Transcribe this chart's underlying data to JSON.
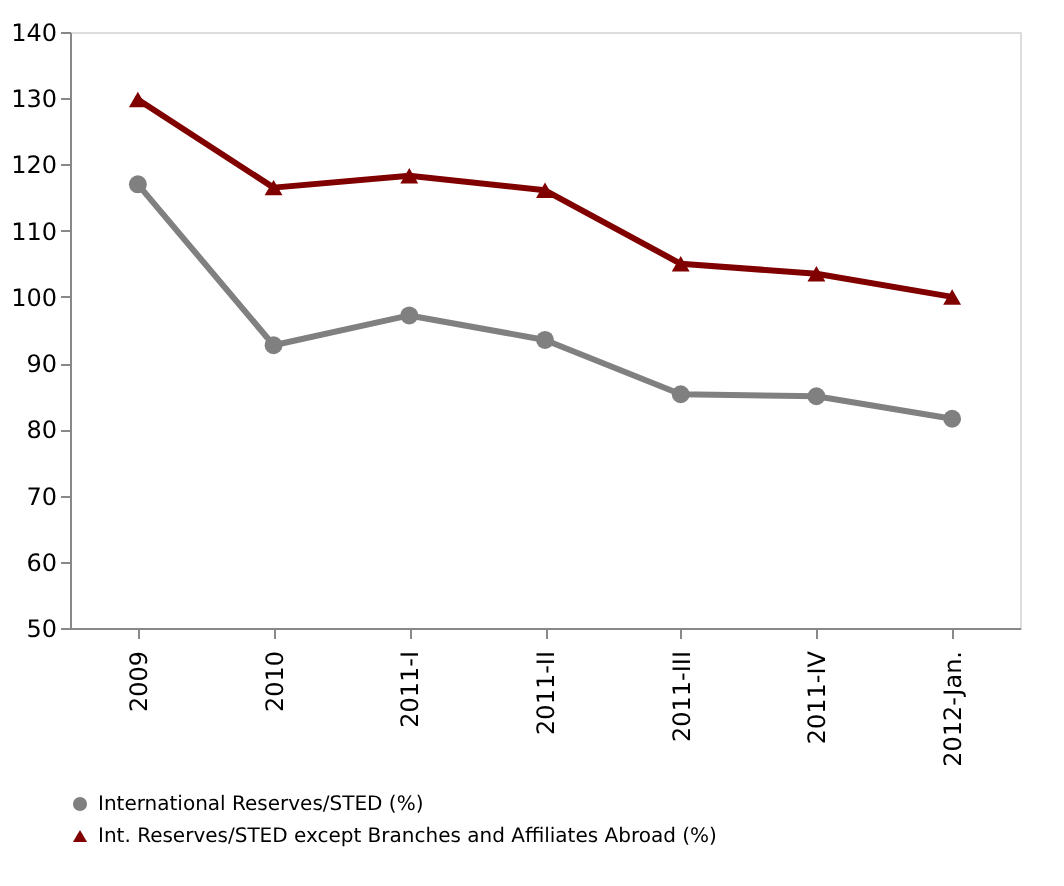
{
  "chart_data": {
    "type": "line",
    "categories": [
      "2009",
      "2010",
      "2011-I",
      "2011-II",
      "2011-III",
      "2011-IV",
      "2012-Jan."
    ],
    "series": [
      {
        "name": "International Reserves/STED (%)",
        "color": "#808080",
        "marker": "circle",
        "values": [
          117,
          92.7,
          97.2,
          93.5,
          85.3,
          85,
          81.6
        ]
      },
      {
        "name": "Int. Reserves/STED except Branches and Affiliates Abroad (%)",
        "color": "#800000",
        "marker": "triangle",
        "values": [
          129.8,
          116.5,
          118.3,
          116.1,
          105,
          103.5,
          100
        ]
      }
    ],
    "ylim": [
      50,
      140
    ],
    "yticks": [
      50,
      60,
      70,
      80,
      90,
      100,
      110,
      120,
      130,
      140
    ],
    "grid": false,
    "legend": "bottom",
    "line_style": "solid"
  }
}
